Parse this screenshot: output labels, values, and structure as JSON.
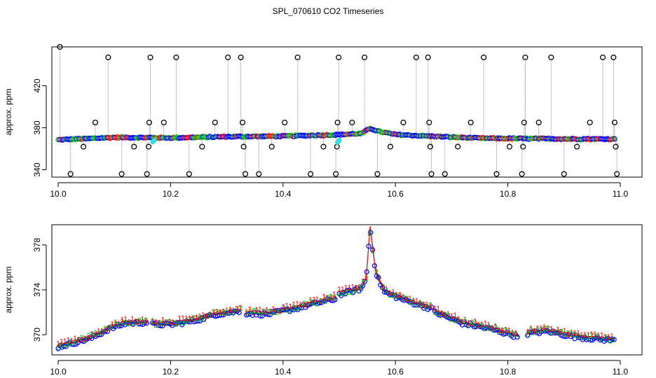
{
  "title": "SPL_070610  CO2 Timeseries",
  "colors": {
    "black": "#000000",
    "blue": "#0000ff",
    "green": "#00bb00",
    "red": "#ff0000",
    "cyan": "#33dddd",
    "gray": "#888888"
  },
  "chart_data": [
    {
      "type": "scatter",
      "panel": "top",
      "title": "",
      "xlabel": "",
      "ylabel": "approx. ppm",
      "xlim": [
        10.0,
        11.0
      ],
      "ylim": [
        333,
        457
      ],
      "x_ticks": [
        10.0,
        10.2,
        10.4,
        10.6,
        10.8,
        11.0
      ],
      "x_tick_labels": [
        "10.0",
        "10.2",
        "10.4",
        "10.6",
        "10.8",
        "11.0"
      ],
      "y_ticks": [
        340,
        380,
        420
      ],
      "y_tick_labels": [
        "340",
        "380",
        "420"
      ],
      "grid": false,
      "baseline": [
        [
          10.0,
          368.5
        ],
        [
          10.05,
          369.6
        ],
        [
          10.1,
          370.8
        ],
        [
          10.16,
          370.6
        ],
        [
          10.2,
          370.4
        ],
        [
          10.3,
          371.5
        ],
        [
          10.4,
          372.0
        ],
        [
          10.5,
          373.4
        ],
        [
          10.54,
          374.6
        ],
        [
          10.555,
          379.5
        ],
        [
          10.57,
          376.5
        ],
        [
          10.6,
          373.5
        ],
        [
          10.66,
          372.0
        ],
        [
          10.75,
          370.0
        ],
        [
          10.8,
          369.8
        ],
        [
          10.9,
          369.4
        ],
        [
          10.99,
          369.2
        ]
      ],
      "spikes": [
        {
          "x": 10.003,
          "y": 457
        },
        {
          "x": 10.022,
          "y": 336
        },
        {
          "x": 10.045,
          "y": 362
        },
        {
          "x": 10.066,
          "y": 385
        },
        {
          "x": 10.089,
          "y": 447
        },
        {
          "x": 10.113,
          "y": 336
        },
        {
          "x": 10.135,
          "y": 362
        },
        {
          "x": 10.158,
          "y": 336
        },
        {
          "x": 10.161,
          "y": 362
        },
        {
          "x": 10.162,
          "y": 385
        },
        {
          "x": 10.164,
          "y": 447
        },
        {
          "x": 10.188,
          "y": 385
        },
        {
          "x": 10.21,
          "y": 447
        },
        {
          "x": 10.233,
          "y": 336
        },
        {
          "x": 10.256,
          "y": 362
        },
        {
          "x": 10.279,
          "y": 385
        },
        {
          "x": 10.302,
          "y": 447
        },
        {
          "x": 10.325,
          "y": 447
        },
        {
          "x": 10.328,
          "y": 385
        },
        {
          "x": 10.33,
          "y": 362
        },
        {
          "x": 10.333,
          "y": 336
        },
        {
          "x": 10.357,
          "y": 336
        },
        {
          "x": 10.38,
          "y": 362
        },
        {
          "x": 10.403,
          "y": 385
        },
        {
          "x": 10.426,
          "y": 447
        },
        {
          "x": 10.449,
          "y": 336
        },
        {
          "x": 10.472,
          "y": 362
        },
        {
          "x": 10.494,
          "y": 336
        },
        {
          "x": 10.496,
          "y": 362
        },
        {
          "x": 10.497,
          "y": 385
        },
        {
          "x": 10.499,
          "y": 447
        },
        {
          "x": 10.523,
          "y": 385
        },
        {
          "x": 10.545,
          "y": 447
        },
        {
          "x": 10.568,
          "y": 336
        },
        {
          "x": 10.591,
          "y": 362
        },
        {
          "x": 10.614,
          "y": 385
        },
        {
          "x": 10.637,
          "y": 447
        },
        {
          "x": 10.658,
          "y": 447
        },
        {
          "x": 10.66,
          "y": 385
        },
        {
          "x": 10.662,
          "y": 362
        },
        {
          "x": 10.664,
          "y": 336
        },
        {
          "x": 10.688,
          "y": 336
        },
        {
          "x": 10.711,
          "y": 362
        },
        {
          "x": 10.734,
          "y": 385
        },
        {
          "x": 10.757,
          "y": 447
        },
        {
          "x": 10.78,
          "y": 336
        },
        {
          "x": 10.803,
          "y": 362
        },
        {
          "x": 10.825,
          "y": 336
        },
        {
          "x": 10.827,
          "y": 362
        },
        {
          "x": 10.829,
          "y": 385
        },
        {
          "x": 10.831,
          "y": 447
        },
        {
          "x": 10.855,
          "y": 385
        },
        {
          "x": 10.877,
          "y": 447
        },
        {
          "x": 10.9,
          "y": 336
        },
        {
          "x": 10.923,
          "y": 362
        },
        {
          "x": 10.946,
          "y": 385
        },
        {
          "x": 10.969,
          "y": 447
        },
        {
          "x": 10.988,
          "y": 447
        },
        {
          "x": 10.99,
          "y": 385
        },
        {
          "x": 10.992,
          "y": 362
        },
        {
          "x": 10.994,
          "y": 336
        }
      ],
      "cyan_points": [
        {
          "x": 10.168,
          "y": 366.5
        },
        {
          "x": 10.171,
          "y": 368
        },
        {
          "x": 10.497,
          "y": 366
        },
        {
          "x": 10.5,
          "y": 368
        }
      ]
    },
    {
      "type": "scatter",
      "panel": "bottom",
      "title": "",
      "xlabel": "",
      "ylabel": "approx. ppm",
      "xlim": [
        10.0,
        11.0
      ],
      "ylim": [
        368.2,
        379.8
      ],
      "x_ticks": [
        10.0,
        10.2,
        10.4,
        10.6,
        10.8,
        11.0
      ],
      "x_tick_labels": [
        "10.0",
        "10.2",
        "10.4",
        "10.6",
        "10.8",
        "11.0"
      ],
      "y_ticks": [
        370,
        374,
        378
      ],
      "y_tick_labels": [
        "370",
        "374",
        "378"
      ],
      "grid": false,
      "series": [
        {
          "name": "3",
          "marker": "O",
          "color": "#0000ff",
          "offset": 0.0
        },
        {
          "name": "2",
          "marker": "2",
          "color": "#00bb00",
          "offset": 0.15
        },
        {
          "name": "1",
          "marker": "1",
          "color": "#ff0000",
          "offset": 0.3
        }
      ],
      "segments": [
        [
          [
            10.0,
            368.9
          ],
          [
            10.03,
            369.3
          ],
          [
            10.06,
            369.7
          ],
          [
            10.09,
            370.5
          ],
          [
            10.12,
            371.0
          ],
          [
            10.16,
            371.1
          ]
        ],
        [
          [
            10.168,
            370.9
          ],
          [
            10.2,
            370.9
          ],
          [
            10.24,
            371.2
          ],
          [
            10.28,
            371.8
          ],
          [
            10.325,
            372.1
          ]
        ],
        [
          [
            10.335,
            371.9
          ],
          [
            10.37,
            371.8
          ],
          [
            10.42,
            372.3
          ],
          [
            10.46,
            372.8
          ],
          [
            10.495,
            373.2
          ]
        ],
        [
          [
            10.5,
            373.6
          ],
          [
            10.54,
            374.1
          ],
          [
            10.548,
            375.0
          ],
          [
            10.555,
            379.5
          ],
          [
            10.565,
            375.5
          ],
          [
            10.58,
            373.8
          ],
          [
            10.62,
            373.0
          ],
          [
            10.665,
            372.3
          ]
        ],
        [
          [
            10.67,
            372.0
          ],
          [
            10.72,
            371.0
          ],
          [
            10.77,
            370.5
          ],
          [
            10.82,
            369.8
          ]
        ],
        [
          [
            10.835,
            370.1
          ],
          [
            10.87,
            370.3
          ],
          [
            10.92,
            369.8
          ],
          [
            10.96,
            369.6
          ],
          [
            10.99,
            369.5
          ]
        ]
      ]
    }
  ]
}
